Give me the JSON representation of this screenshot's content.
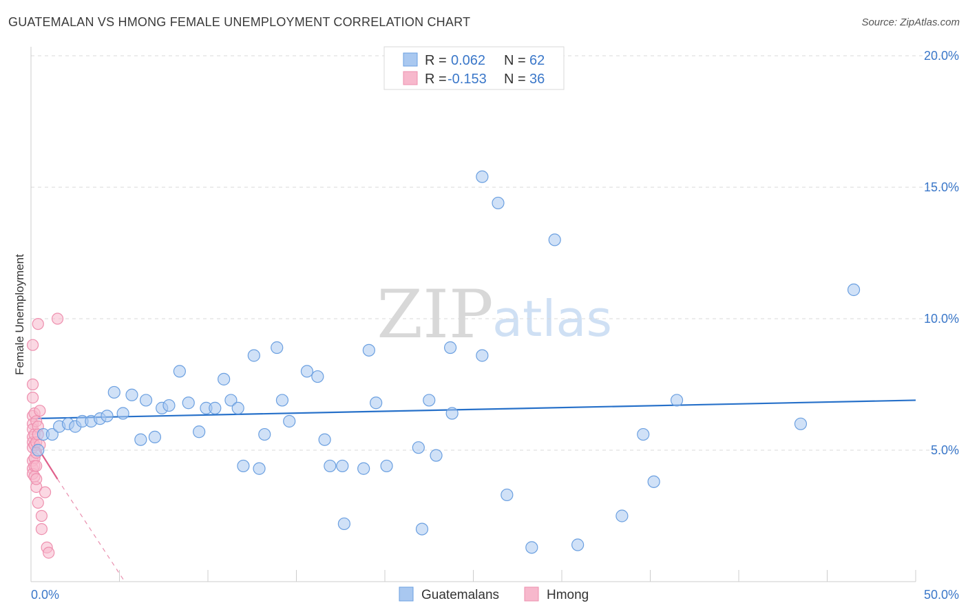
{
  "title": "GUATEMALAN VS HMONG FEMALE UNEMPLOYMENT CORRELATION CHART",
  "source": "Source: ZipAtlas.com",
  "watermark": {
    "zip": "ZIP",
    "atlas": "atlas"
  },
  "colors": {
    "blue_fill": "#a9c8f0",
    "blue_stroke": "#6a9fe0",
    "blue_line": "#2670c9",
    "pink_fill": "#f7b8cc",
    "pink_stroke": "#ee8fae",
    "pink_line": "#e0608b",
    "label_blue": "#3a77c9",
    "grid": "#d9d9d9"
  },
  "legend": [
    {
      "r_label": "R = ",
      "r_value": "0.062",
      "n_label": "N = ",
      "n_value": "62"
    },
    {
      "r_label": "R = ",
      "r_value": "-0.153",
      "n_label": "N = ",
      "n_value": "36"
    }
  ],
  "chart_data": {
    "type": "scatter",
    "xlabel": "",
    "ylabel": "Female Unemployment",
    "xlim": [
      0,
      50
    ],
    "ylim": [
      0,
      20.8
    ],
    "x_tick_labels": [
      "0.0%",
      "50.0%"
    ],
    "y_ticks": [
      5,
      10,
      15,
      20
    ],
    "y_tick_labels": [
      "5.0%",
      "10.0%",
      "15.0%",
      "20.0%"
    ],
    "legend_position": "top-center",
    "series": [
      {
        "name": "Guatemalans",
        "color": "blue",
        "points": [
          [
            0.4,
            5.0
          ],
          [
            0.7,
            5.6
          ],
          [
            1.2,
            5.6
          ],
          [
            1.6,
            5.9
          ],
          [
            2.1,
            6.0
          ],
          [
            2.5,
            5.9
          ],
          [
            2.9,
            6.1
          ],
          [
            3.4,
            6.1
          ],
          [
            3.9,
            6.2
          ],
          [
            4.3,
            6.3
          ],
          [
            4.7,
            7.2
          ],
          [
            5.2,
            6.4
          ],
          [
            5.7,
            7.1
          ],
          [
            6.2,
            5.4
          ],
          [
            6.5,
            6.9
          ],
          [
            7.0,
            5.5
          ],
          [
            7.4,
            6.6
          ],
          [
            7.8,
            6.7
          ],
          [
            8.4,
            8.0
          ],
          [
            8.9,
            6.8
          ],
          [
            9.5,
            5.7
          ],
          [
            9.9,
            6.6
          ],
          [
            10.4,
            6.6
          ],
          [
            10.9,
            7.7
          ],
          [
            11.3,
            6.9
          ],
          [
            11.7,
            6.6
          ],
          [
            12.0,
            4.4
          ],
          [
            12.6,
            8.6
          ],
          [
            12.9,
            4.3
          ],
          [
            13.2,
            5.6
          ],
          [
            13.9,
            8.9
          ],
          [
            14.2,
            6.9
          ],
          [
            14.6,
            6.1
          ],
          [
            15.6,
            8.0
          ],
          [
            16.2,
            7.8
          ],
          [
            16.6,
            5.4
          ],
          [
            16.9,
            4.4
          ],
          [
            17.6,
            4.4
          ],
          [
            17.7,
            2.2
          ],
          [
            18.8,
            4.3
          ],
          [
            19.1,
            8.8
          ],
          [
            19.5,
            6.8
          ],
          [
            20.1,
            4.4
          ],
          [
            21.9,
            5.1
          ],
          [
            22.1,
            2.0
          ],
          [
            22.5,
            6.9
          ],
          [
            22.9,
            4.8
          ],
          [
            23.7,
            8.9
          ],
          [
            23.8,
            6.4
          ],
          [
            25.5,
            8.6
          ],
          [
            25.5,
            15.4
          ],
          [
            26.4,
            14.4
          ],
          [
            26.9,
            3.3
          ],
          [
            28.3,
            1.3
          ],
          [
            29.6,
            13.0
          ],
          [
            30.9,
            1.4
          ],
          [
            33.4,
            2.5
          ],
          [
            34.6,
            5.6
          ],
          [
            35.2,
            3.8
          ],
          [
            36.5,
            6.9
          ],
          [
            43.5,
            6.0
          ],
          [
            46.5,
            11.1
          ]
        ],
        "trend": [
          [
            0,
            6.2
          ],
          [
            50,
            6.9
          ]
        ]
      },
      {
        "name": "Hmong",
        "color": "pink",
        "points": [
          [
            0.1,
            7.5
          ],
          [
            0.1,
            9.0
          ],
          [
            0.1,
            7.0
          ],
          [
            0.1,
            6.3
          ],
          [
            0.1,
            6.0
          ],
          [
            0.1,
            5.8
          ],
          [
            0.1,
            5.5
          ],
          [
            0.1,
            5.3
          ],
          [
            0.1,
            5.1
          ],
          [
            0.1,
            4.6
          ],
          [
            0.1,
            4.3
          ],
          [
            0.1,
            4.1
          ],
          [
            0.2,
            6.4
          ],
          [
            0.2,
            5.6
          ],
          [
            0.2,
            5.2
          ],
          [
            0.2,
            4.7
          ],
          [
            0.2,
            4.4
          ],
          [
            0.2,
            4.0
          ],
          [
            0.3,
            6.1
          ],
          [
            0.3,
            5.3
          ],
          [
            0.3,
            4.4
          ],
          [
            0.3,
            3.6
          ],
          [
            0.3,
            3.9
          ],
          [
            0.4,
            9.8
          ],
          [
            0.4,
            5.9
          ],
          [
            0.4,
            5.6
          ],
          [
            0.4,
            3.0
          ],
          [
            0.5,
            6.5
          ],
          [
            0.5,
            5.2
          ],
          [
            0.6,
            2.5
          ],
          [
            0.6,
            2.0
          ],
          [
            0.8,
            3.4
          ],
          [
            0.9,
            1.3
          ],
          [
            1.0,
            1.1
          ],
          [
            1.5,
            10.0
          ],
          [
            0.3,
            4.9
          ]
        ],
        "trend_solid": [
          [
            0,
            5.5
          ],
          [
            1.5,
            3.9
          ]
        ],
        "trend_dashed": [
          [
            1.5,
            3.9
          ],
          [
            5.3,
            0
          ]
        ]
      }
    ]
  }
}
